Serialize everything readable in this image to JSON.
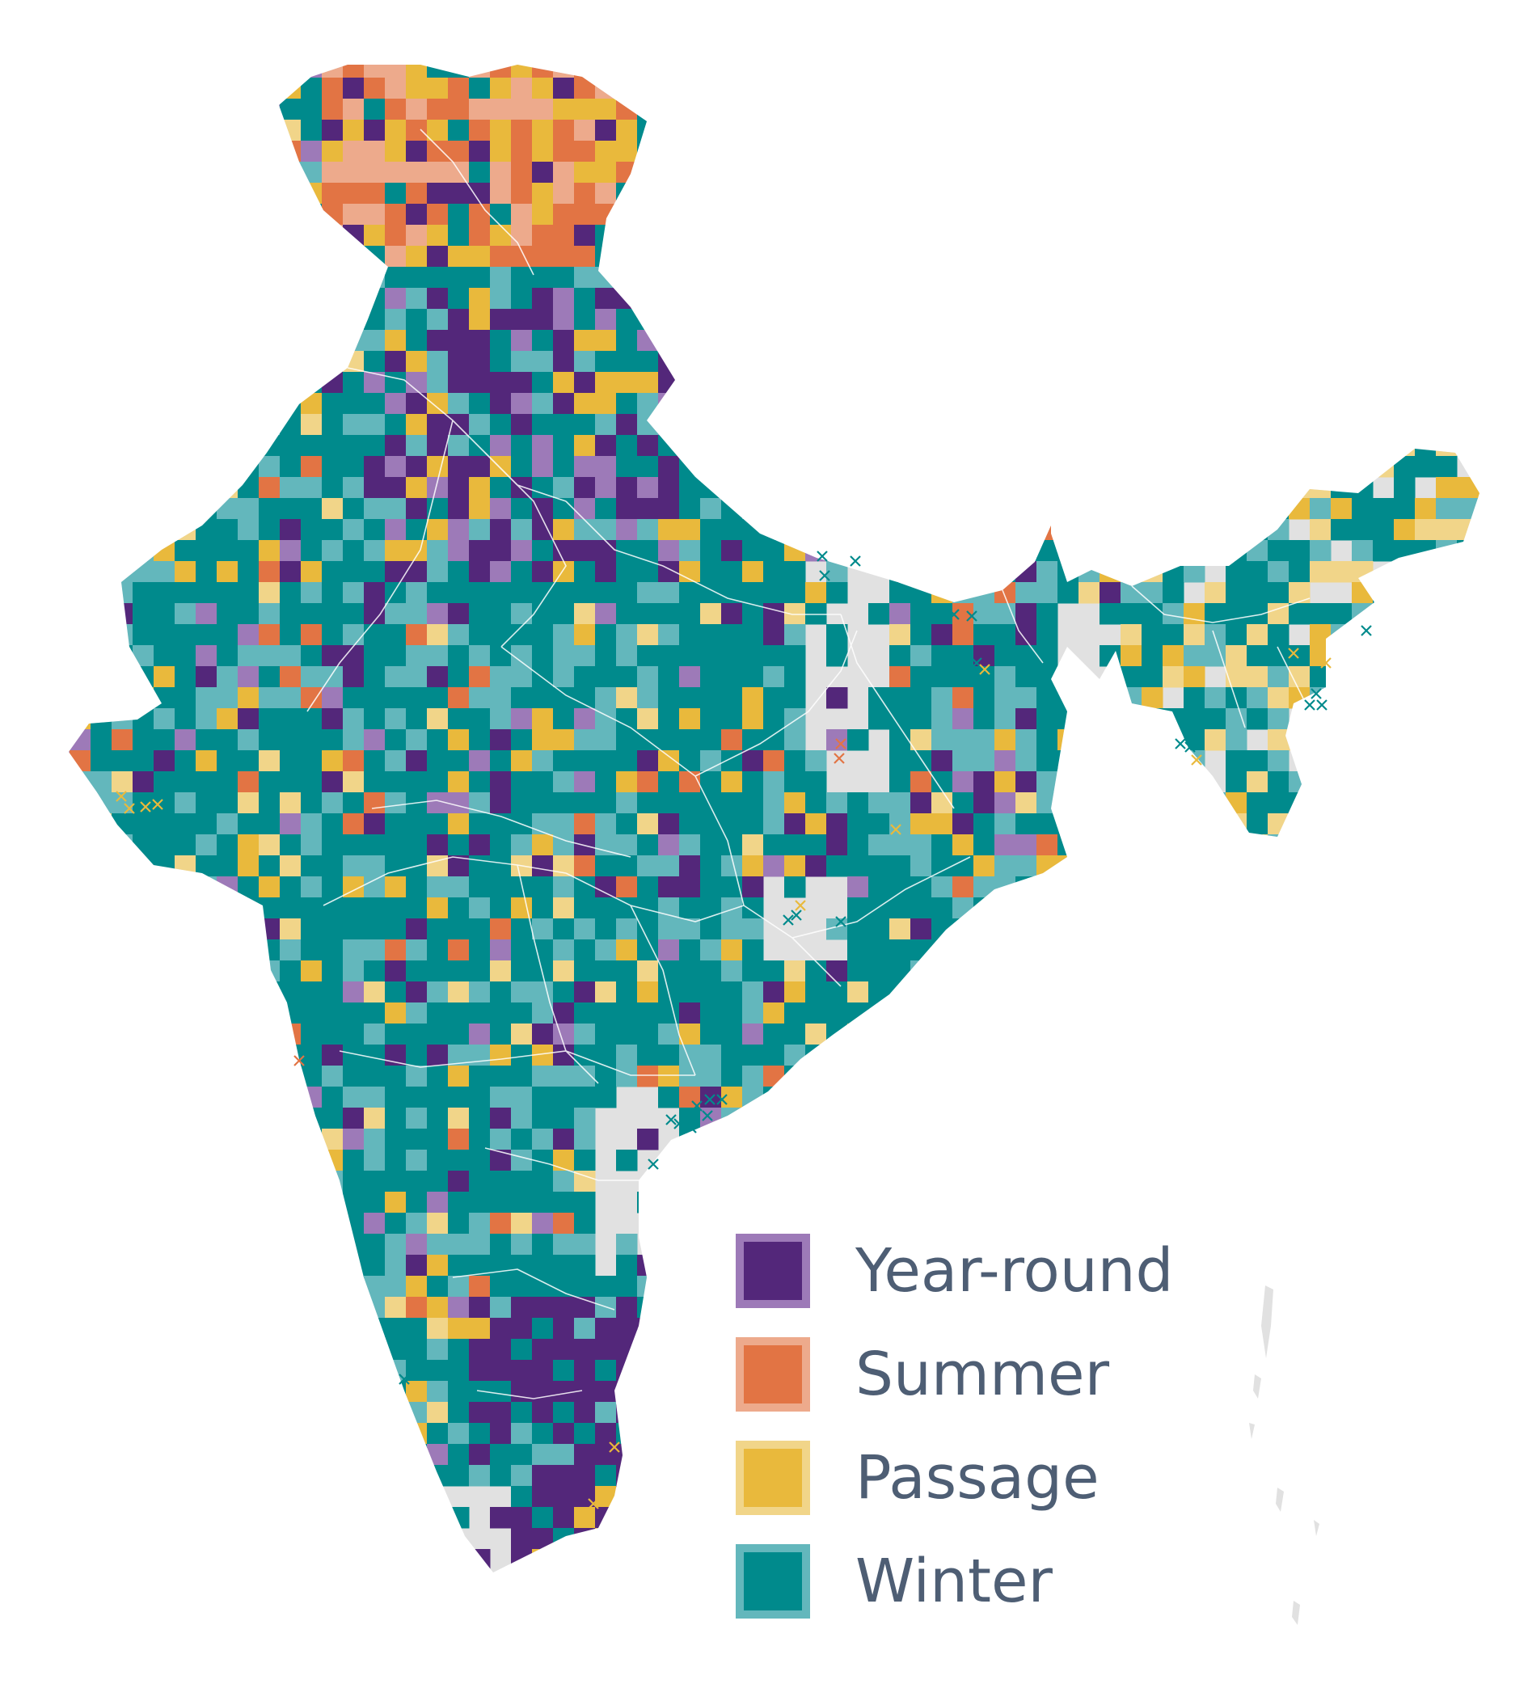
{
  "legend": {
    "items": [
      {
        "key": "year-round",
        "label": "Year-round",
        "fill": "#53277a",
        "border": "#9d7ab8"
      },
      {
        "key": "summer",
        "label": "Summer",
        "fill": "#e27444",
        "border": "#edaa8c"
      },
      {
        "key": "passage",
        "label": "Passage",
        "fill": "#e9b93c",
        "border": "#f1d589"
      },
      {
        "key": "winter",
        "label": "Winter",
        "fill": "#008a8c",
        "border": "#63b7bc"
      }
    ]
  },
  "colors": {
    "background": "#ffffff",
    "land_no_data": "#e1e1e1",
    "boundaries": "#ffffff",
    "legend_text": "#4e5e74"
  },
  "map": {
    "type": "seasonal-occurrence-grid",
    "categories": [
      "year-round",
      "summer",
      "passage",
      "winter"
    ],
    "markers": "x"
  }
}
